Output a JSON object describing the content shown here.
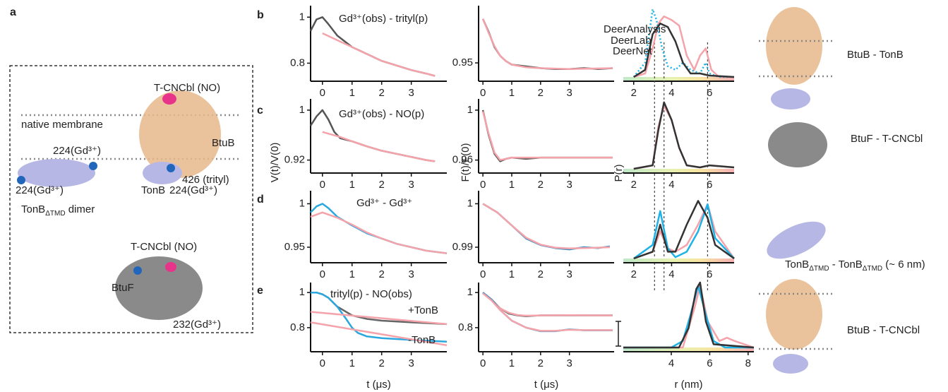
{
  "row_letters": [
    "b",
    "c",
    "d",
    "e"
  ],
  "panel_a": {
    "letter": "a",
    "labels": [
      {
        "parts": [
          {
            "text": "T-CNCbl (NO)"
          }
        ]
      },
      {
        "parts": [
          {
            "text": "native membrane"
          }
        ]
      },
      {
        "parts": [
          {
            "text": "BtuB"
          }
        ]
      },
      {
        "parts": [
          {
            "text": "224(Gd³⁺)"
          }
        ]
      },
      {
        "parts": [
          {
            "text": "426 (trityl)"
          }
        ]
      },
      {
        "parts": [
          {
            "text": "224(Gd³⁺)"
          }
        ]
      },
      {
        "parts": [
          {
            "text": "TonB"
          }
        ]
      },
      {
        "parts": [
          {
            "text": "224(Gd³⁺)"
          }
        ]
      },
      {
        "parts": [
          {
            "text": "TonB"
          },
          {
            "sub": "ΔTMD"
          },
          {
            "text": " dimer"
          }
        ]
      },
      {
        "parts": [
          {
            "text": "T-CNCbl (NO)"
          }
        ]
      },
      {
        "parts": [
          {
            "text": "BtuF"
          }
        ]
      },
      {
        "parts": [
          {
            "text": "232(Gd³⁺)"
          }
        ]
      }
    ]
  },
  "structures": [
    {
      "parts": [
        {
          "text": "BtuB - TonB"
        }
      ]
    },
    {
      "parts": [
        {
          "text": "BtuF - T-CNCbl"
        }
      ]
    },
    {
      "parts": [
        {
          "text": "TonB"
        },
        {
          "sub": "ΔTMD"
        },
        {
          "text": " - TonB"
        },
        {
          "sub": "ΔTMD"
        },
        {
          "text": " (~ 6 nm)"
        }
      ]
    },
    {
      "parts": [
        {
          "text": "BtuB - T-CNCbl"
        }
      ]
    }
  ],
  "chart_data": [
    {
      "type": "line",
      "title": "Gd³⁺(obs) - trityl(p)",
      "xlim": [
        -0.4,
        4.2
      ],
      "ylim": [
        0.74,
        1.05
      ],
      "xticks": [
        0,
        1,
        2,
        3
      ],
      "yticks": [
        0.8,
        1
      ],
      "series": [
        {
          "color": "#555555",
          "x": [
            -0.4,
            -0.2,
            0,
            0.2,
            0.5,
            1,
            1.5,
            2,
            2.5,
            3,
            3.5,
            3.8
          ],
          "values": [
            0.94,
            0.99,
            1.0,
            0.97,
            0.92,
            0.87,
            0.84,
            0.81,
            0.79,
            0.77,
            0.755,
            0.745
          ]
        },
        {
          "color": "#f4a3aa",
          "x": [
            0,
            0.5,
            1,
            1.5,
            2,
            2.5,
            3,
            3.5,
            3.8
          ],
          "values": [
            0.93,
            0.9,
            0.87,
            0.84,
            0.81,
            0.79,
            0.77,
            0.755,
            0.745
          ]
        }
      ]
    },
    {
      "type": "line",
      "xlim": [
        -0.15,
        4.55
      ],
      "ylim": [
        0.934,
        1.015
      ],
      "xticks": [
        0,
        1,
        2,
        3
      ],
      "yticks": [
        0.95
      ],
      "series": [
        {
          "color": "#555555",
          "x": [
            0,
            0.2,
            0.4,
            0.6,
            0.8,
            1,
            1.5,
            2,
            2.5,
            3,
            3.5,
            4,
            4.5
          ],
          "values": [
            1,
            0.985,
            0.968,
            0.958,
            0.952,
            0.948,
            0.946,
            0.944,
            0.943,
            0.943,
            0.944,
            0.943,
            0.944
          ]
        },
        {
          "color": "#f4a3aa",
          "x": [
            0,
            0.2,
            0.4,
            0.6,
            0.8,
            1,
            1.5,
            2,
            3,
            4.5
          ],
          "values": [
            1,
            0.984,
            0.969,
            0.958,
            0.952,
            0.948,
            0.945,
            0.944,
            0.943,
            0.944
          ]
        }
      ]
    },
    {
      "type": "line",
      "xlim": [
        1.45,
        7.3
      ],
      "ylim": [
        0,
        1
      ],
      "xticks": [
        2,
        4,
        6
      ],
      "reference_lines": [
        3.1,
        3.6,
        5.9
      ],
      "series": [
        {
          "name": "DeerAnalysis",
          "color": "#f4a3aa",
          "x": [
            2,
            2.6,
            3,
            3.3,
            3.6,
            4,
            4.4,
            4.8,
            5.2,
            5.5,
            5.8,
            6.1,
            6.5,
            7.3
          ],
          "values": [
            0,
            0.05,
            0.4,
            0.75,
            0.85,
            0.8,
            0.72,
            0.3,
            0.1,
            0.3,
            0.4,
            0.1,
            0,
            0
          ]
        },
        {
          "name": "DeerLab",
          "color": "#1fb2e6",
          "linestyle": "dotted",
          "x": [
            2,
            2.6,
            3,
            3.2,
            3.5,
            3.8,
            4.2,
            4.6,
            5,
            5.5,
            5.8,
            6,
            6.5,
            7.3
          ],
          "values": [
            0,
            0.2,
            0.95,
            0.8,
            0.4,
            0.15,
            0.1,
            0.2,
            0.1,
            0.05,
            0.2,
            0.05,
            0,
            0
          ]
        },
        {
          "name": "DeerNet",
          "color": "#333333",
          "x": [
            2,
            2.6,
            3,
            3.4,
            3.8,
            4.2,
            4.6,
            5,
            5.5,
            6,
            7.3
          ],
          "values": [
            0,
            0.1,
            0.6,
            0.75,
            0.7,
            0.5,
            0.2,
            0.05,
            0.05,
            0.02,
            0
          ]
        }
      ]
    },
    {
      "type": "line",
      "title": "Gd³⁺(obs) - NO(p)",
      "ylabel": "V(t)/V(0)",
      "xlim": [
        -0.4,
        4.2
      ],
      "ylim": [
        0.906,
        1.018
      ],
      "xticks": [
        0,
        1,
        2,
        3
      ],
      "yticks": [
        0.92,
        1
      ],
      "series": [
        {
          "color": "#555555",
          "x": [
            -0.4,
            -0.2,
            0,
            0.2,
            0.4,
            0.6,
            1,
            1.5,
            2,
            2.5,
            3,
            3.5,
            3.8
          ],
          "values": [
            0.975,
            0.99,
            1.0,
            0.985,
            0.965,
            0.955,
            0.95,
            0.942,
            0.935,
            0.93,
            0.925,
            0.92,
            0.918
          ]
        },
        {
          "color": "#f4a3aa",
          "x": [
            0,
            0.6,
            1,
            1.5,
            2,
            2.5,
            3,
            3.5,
            3.8
          ],
          "values": [
            0.965,
            0.957,
            0.95,
            0.942,
            0.935,
            0.93,
            0.925,
            0.92,
            0.918
          ]
        }
      ]
    },
    {
      "type": "line",
      "ylabel": "F(t)/F(0)",
      "xlim": [
        -0.15,
        4.55
      ],
      "ylim": [
        0.953,
        1.009
      ],
      "xticks": [
        0,
        1,
        2,
        3
      ],
      "yticks": [
        0.96,
        1
      ],
      "series": [
        {
          "color": "#555555",
          "x": [
            0,
            0.2,
            0.4,
            0.6,
            0.8,
            1,
            1.5,
            2,
            3,
            4.5
          ],
          "values": [
            1,
            0.98,
            0.965,
            0.959,
            0.961,
            0.962,
            0.961,
            0.962,
            0.962,
            0.962
          ]
        },
        {
          "color": "#f4a3aa",
          "x": [
            0,
            0.2,
            0.4,
            0.6,
            0.8,
            1,
            1.5,
            2,
            3,
            4.5
          ],
          "values": [
            0.999,
            0.981,
            0.966,
            0.96,
            0.961,
            0.962,
            0.962,
            0.962,
            0.962,
            0.962
          ]
        }
      ]
    },
    {
      "type": "line",
      "ylabel": "P(r)",
      "xlim": [
        1.45,
        7.3
      ],
      "ylim": [
        0,
        1
      ],
      "xticks": [
        2,
        4,
        6
      ],
      "series": [
        {
          "color": "#f4a3aa",
          "x": [
            2,
            3,
            3.3,
            3.6,
            4,
            4.4,
            4.8,
            5.5,
            6,
            7.3
          ],
          "values": [
            0,
            0.05,
            0.6,
            0.9,
            0.7,
            0.3,
            0.05,
            0.02,
            0.05,
            0.02
          ]
        },
        {
          "color": "#333333",
          "x": [
            2,
            3,
            3.3,
            3.6,
            4,
            4.4,
            4.8,
            5.5,
            6,
            7.3
          ],
          "values": [
            0,
            0.05,
            0.55,
            0.95,
            0.7,
            0.3,
            0.05,
            0.02,
            0.05,
            0.02
          ]
        }
      ]
    },
    {
      "type": "line",
      "title": "Gd³⁺ - Gd³⁺",
      "xlim": [
        -0.4,
        4.2
      ],
      "ylim": [
        0.937,
        1.015
      ],
      "xticks": [
        0,
        1,
        2,
        3
      ],
      "yticks": [
        0.95,
        1
      ],
      "series": [
        {
          "color": "#2aa7df",
          "x": [
            -0.4,
            -0.2,
            0,
            0.2,
            0.5,
            1,
            1.5,
            2,
            2.5,
            3,
            3.5,
            4.2
          ],
          "values": [
            0.99,
            0.997,
            1.0,
            0.995,
            0.985,
            0.975,
            0.966,
            0.96,
            0.954,
            0.95,
            0.946,
            0.943
          ]
        },
        {
          "color": "#f4a3aa",
          "x": [
            -0.4,
            0,
            0.5,
            1,
            1.5,
            2,
            2.5,
            3,
            3.5,
            4.2
          ],
          "values": [
            0.985,
            0.99,
            0.984,
            0.976,
            0.967,
            0.96,
            0.954,
            0.95,
            0.946,
            0.943
          ]
        }
      ]
    },
    {
      "type": "line",
      "xlim": [
        -0.15,
        4.55
      ],
      "ylim": [
        0.9874,
        1.003
      ],
      "xticks": [
        0,
        1,
        2,
        3
      ],
      "yticks": [
        0.99,
        1
      ],
      "series": [
        {
          "color": "#3c8dc4",
          "x": [
            0,
            0.5,
            1,
            1.5,
            2,
            2.5,
            3,
            3.5,
            4,
            4.4
          ],
          "values": [
            1,
            0.998,
            0.995,
            0.992,
            0.9905,
            0.9898,
            0.9895,
            0.99,
            0.9898,
            0.9902
          ]
        },
        {
          "color": "#f4a3aa",
          "x": [
            0,
            0.5,
            1,
            1.5,
            2,
            2.5,
            3,
            3.5,
            4,
            4.4
          ],
          "values": [
            1,
            0.998,
            0.995,
            0.9922,
            0.9906,
            0.9899,
            0.9897,
            0.9898,
            0.9899,
            0.99
          ]
        }
      ]
    },
    {
      "type": "line",
      "xlim": [
        1.45,
        7.3
      ],
      "ylim": [
        0,
        1
      ],
      "xticks": [
        2,
        4,
        6
      ],
      "series": [
        {
          "color": "#f4a3aa",
          "x": [
            2,
            3,
            3.4,
            3.8,
            4.2,
            4.8,
            5.4,
            5.9,
            6.3,
            7.3
          ],
          "values": [
            0,
            0.1,
            0.4,
            0.15,
            0.1,
            0.2,
            0.5,
            0.8,
            0.4,
            0
          ]
        },
        {
          "color": "#1fb2e6",
          "x": [
            2,
            3,
            3.4,
            3.8,
            4.2,
            4.8,
            5.4,
            5.9,
            6.3,
            7.3
          ],
          "values": [
            0,
            0.2,
            0.7,
            0.15,
            0.02,
            0.1,
            0.4,
            0.8,
            0.3,
            0
          ]
        },
        {
          "color": "#333333",
          "x": [
            2,
            3,
            3.4,
            3.8,
            4.2,
            4.8,
            5.4,
            5.9,
            6.3,
            7.3
          ],
          "values": [
            0,
            0.1,
            0.5,
            0.1,
            0.1,
            0.5,
            0.85,
            0.6,
            0.2,
            0
          ]
        }
      ]
    },
    {
      "type": "line",
      "title": "trityl(p) - NO(obs)",
      "xlabel": "t (μs)",
      "annotations": [
        "+TonB",
        "-TonB"
      ],
      "xlim": [
        -0.4,
        4.2
      ],
      "ylim": [
        0.687,
        1.057
      ],
      "xticks": [
        0,
        1,
        2,
        3
      ],
      "yticks": [
        0.8,
        1
      ],
      "series": [
        {
          "color": "#666666",
          "x": [
            -0.4,
            -0.2,
            0,
            0.2,
            0.5,
            1,
            1.5,
            2,
            3,
            4.2
          ],
          "values": [
            1,
            1.0,
            0.99,
            0.97,
            0.92,
            0.87,
            0.85,
            0.84,
            0.83,
            0.82
          ]
        },
        {
          "color": "#2aa7df",
          "x": [
            -0.4,
            -0.2,
            0,
            0.2,
            0.5,
            0.8,
            1,
            1.2,
            1.5,
            2,
            3,
            4.2
          ],
          "values": [
            1,
            1.0,
            0.99,
            0.97,
            0.92,
            0.85,
            0.8,
            0.77,
            0.75,
            0.74,
            0.73,
            0.72
          ]
        },
        {
          "color": "#f4a3aa",
          "x": [
            -0.4,
            4.2
          ],
          "values": [
            0.89,
            0.82
          ]
        },
        {
          "color": "#f4a3aa",
          "x": [
            -0.4,
            4.2
          ],
          "values": [
            0.83,
            0.7
          ]
        }
      ]
    },
    {
      "type": "line",
      "xlabel": "t (μs)",
      "xlim": [
        -0.15,
        4.55
      ],
      "ylim": [
        0.687,
        1.057
      ],
      "xticks": [
        0,
        1,
        2,
        3
      ],
      "yticks": [
        0.8,
        1
      ],
      "series": [
        {
          "color": "#666666",
          "x": [
            0,
            0.3,
            0.6,
            0.9,
            1.2,
            1.5,
            2,
            3,
            4.5
          ],
          "values": [
            1,
            0.96,
            0.91,
            0.88,
            0.87,
            0.865,
            0.87,
            0.87,
            0.87
          ]
        },
        {
          "color": "#f4a3aa",
          "x": [
            0,
            0.3,
            0.6,
            0.9,
            1.2,
            1.5,
            2,
            3,
            4.5
          ],
          "values": [
            1,
            0.955,
            0.91,
            0.885,
            0.872,
            0.868,
            0.87,
            0.871,
            0.87
          ]
        },
        {
          "color": "#3c8dc4",
          "x": [
            0,
            0.3,
            0.6,
            1,
            1.5,
            2,
            2.5,
            3,
            3.5,
            4.5
          ],
          "values": [
            1,
            0.96,
            0.9,
            0.84,
            0.8,
            0.78,
            0.78,
            0.79,
            0.785,
            0.785
          ]
        },
        {
          "color": "#f4a3aa",
          "x": [
            0,
            0.3,
            0.6,
            1,
            1.5,
            2,
            2.5,
            3,
            3.5,
            4.5
          ],
          "values": [
            0.995,
            0.955,
            0.9,
            0.84,
            0.8,
            0.782,
            0.782,
            0.788,
            0.786,
            0.786
          ]
        }
      ]
    },
    {
      "type": "line",
      "xlabel": "r (nm)",
      "xlim": [
        1.5,
        8.3
      ],
      "ylim": [
        0,
        1
      ],
      "xticks": [
        4,
        6,
        8
      ],
      "series": [
        {
          "color": "#f4a3aa",
          "x": [
            1.5,
            4.6,
            5.2,
            5.5,
            5.9,
            6.5,
            6.9,
            7.3,
            8.3
          ],
          "values": [
            0,
            0,
            0.6,
            0.95,
            0.4,
            0.1,
            0.15,
            0.1,
            0
          ]
        },
        {
          "color": "#1fb2e6",
          "x": [
            1.5,
            4,
            4.6,
            5,
            5.4,
            5.8,
            6.2,
            6.8,
            8.3
          ],
          "values": [
            0,
            0,
            0.1,
            0.5,
            0.95,
            0.5,
            0.1,
            0,
            0
          ]
        },
        {
          "color": "#333333",
          "x": [
            1.5,
            4.4,
            4.9,
            5.3,
            5.5,
            5.8,
            6.2,
            8.3
          ],
          "values": [
            0,
            0,
            0.3,
            0.9,
            1.0,
            0.4,
            0.05,
            0
          ]
        }
      ]
    }
  ]
}
